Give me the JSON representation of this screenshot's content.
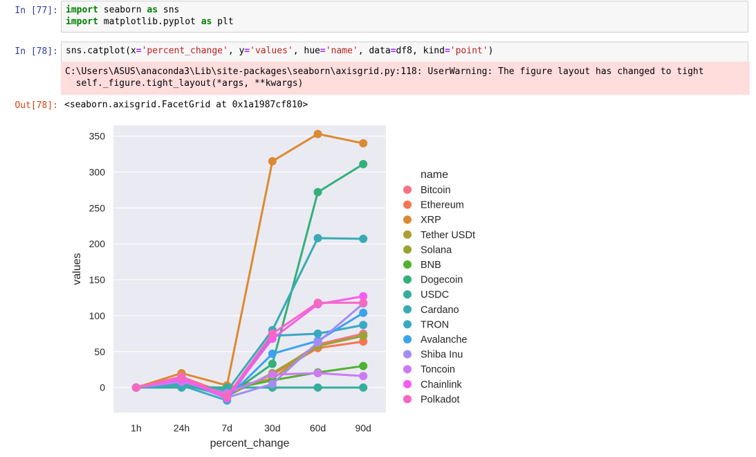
{
  "cells": [
    {
      "prompt": "In [77]:",
      "lines": [
        [
          {
            "t": "kw",
            "v": "import"
          },
          {
            "t": "",
            "v": " seaborn "
          },
          {
            "t": "kw",
            "v": "as"
          },
          {
            "t": "",
            "v": " sns"
          }
        ],
        [
          {
            "t": "kw",
            "v": "import"
          },
          {
            "t": "",
            "v": " matplotlib.pyplot "
          },
          {
            "t": "kw",
            "v": "as"
          },
          {
            "t": "",
            "v": " plt"
          }
        ]
      ]
    },
    {
      "prompt": "In [78]:",
      "lines": [
        [
          {
            "t": "",
            "v": "sns.catplot(x"
          },
          {
            "t": "op",
            "v": "="
          },
          {
            "t": "str",
            "v": "'percent_change'"
          },
          {
            "t": "",
            "v": ", y"
          },
          {
            "t": "op",
            "v": "="
          },
          {
            "t": "str",
            "v": "'values'"
          },
          {
            "t": "",
            "v": ", hue"
          },
          {
            "t": "op",
            "v": "="
          },
          {
            "t": "str",
            "v": "'name'"
          },
          {
            "t": "",
            "v": ", data"
          },
          {
            "t": "op",
            "v": "="
          },
          {
            "t": "",
            "v": "df8, kind"
          },
          {
            "t": "op",
            "v": "="
          },
          {
            "t": "str",
            "v": "'point'"
          },
          {
            "t": "",
            "v": ")"
          }
        ]
      ]
    }
  ],
  "stderr": "C:\\Users\\ASUS\\anaconda3\\Lib\\site-packages\\seaborn\\axisgrid.py:118: UserWarning: The figure layout has changed to tight\n  self._figure.tight_layout(*args, **kwargs)",
  "output": {
    "prompt": "Out[78]:",
    "text": "<seaborn.axisgrid.FacetGrid at 0x1a1987cf810>"
  },
  "chart_data": {
    "type": "line",
    "xlabel": "percent_change",
    "ylabel": "values",
    "categories": [
      "1h",
      "24h",
      "7d",
      "30d",
      "60d",
      "90d"
    ],
    "ylim": [
      -35,
      365
    ],
    "yticks": [
      0,
      50,
      100,
      150,
      200,
      250,
      300,
      350
    ],
    "grid": true,
    "legend_title": "name",
    "legend_position": "right",
    "series": [
      {
        "name": "Bitcoin",
        "color": "#f77189",
        "values": [
          0,
          15,
          -10,
          18,
          60,
          75
        ]
      },
      {
        "name": "Ethereum",
        "color": "#f7754f",
        "values": [
          0,
          15,
          -9,
          18,
          55,
          64
        ]
      },
      {
        "name": "XRP",
        "color": "#dc8932",
        "values": [
          0,
          20,
          3,
          315,
          353,
          340
        ]
      },
      {
        "name": "Tether USDt",
        "color": "#ae9d31",
        "values": [
          0,
          1,
          0,
          12,
          58,
          72
        ]
      },
      {
        "name": "Solana",
        "color": "#97a431",
        "values": [
          0,
          12,
          -12,
          20,
          58,
          72
        ]
      },
      {
        "name": "BNB",
        "color": "#50b131",
        "values": [
          0,
          5,
          -3,
          10,
          21,
          30
        ]
      },
      {
        "name": "Dogecoin",
        "color": "#33b07a",
        "values": [
          0,
          5,
          -12,
          33,
          272,
          311
        ]
      },
      {
        "name": "USDC",
        "color": "#35ad9c",
        "values": [
          0,
          0,
          0,
          0,
          0,
          0
        ]
      },
      {
        "name": "Cardano",
        "color": "#37abb4",
        "values": [
          0,
          8,
          -5,
          80,
          208,
          207
        ]
      },
      {
        "name": "TRON",
        "color": "#38a9c5",
        "values": [
          0,
          3,
          -18,
          72,
          75,
          87
        ]
      },
      {
        "name": "Avalanche",
        "color": "#3ba3ec",
        "values": [
          0,
          10,
          -15,
          47,
          65,
          104
        ]
      },
      {
        "name": "Shiba Inu",
        "color": "#a48cf4",
        "values": [
          0,
          12,
          -14,
          5,
          63,
          117
        ]
      },
      {
        "name": "Toncoin",
        "color": "#cc7af4",
        "values": [
          0,
          8,
          -8,
          18,
          20,
          16
        ]
      },
      {
        "name": "Chainlink",
        "color": "#f45cf2",
        "values": [
          0,
          12,
          -15,
          68,
          116,
          127
        ]
      },
      {
        "name": "Polkadot",
        "color": "#f668c2",
        "values": [
          0,
          15,
          -12,
          75,
          118,
          118
        ]
      }
    ]
  }
}
